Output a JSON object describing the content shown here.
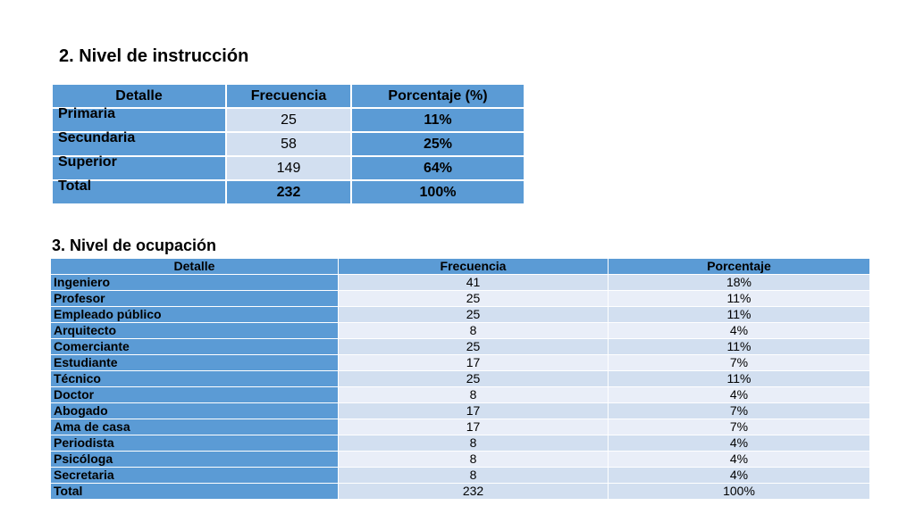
{
  "education": {
    "title": "2. Nivel de instrucción",
    "headers": [
      "Detalle",
      "Frecuencia",
      "Porcentaje (%)"
    ],
    "rows": [
      {
        "label": "Primaria",
        "freq": "25",
        "pct": "11%"
      },
      {
        "label": "Secundaria",
        "freq": "58",
        "pct": "25%"
      },
      {
        "label": "Superior",
        "freq": "149",
        "pct": "64%"
      },
      {
        "label": "Total",
        "freq": "232",
        "pct": "100%"
      }
    ]
  },
  "occupation": {
    "title": "3. Nivel de ocupación",
    "headers": [
      "Detalle",
      "Frecuencia",
      "Porcentaje"
    ],
    "rows": [
      {
        "label": "Ingeniero",
        "freq": "41",
        "pct": "18%"
      },
      {
        "label": "Profesor",
        "freq": "25",
        "pct": "11%"
      },
      {
        "label": "Empleado público",
        "freq": "25",
        "pct": "11%"
      },
      {
        "label": "Arquitecto",
        "freq": "8",
        "pct": "4%"
      },
      {
        "label": "Comerciante",
        "freq": "25",
        "pct": "11%"
      },
      {
        "label": "Estudiante",
        "freq": "17",
        "pct": "7%"
      },
      {
        "label": "Técnico",
        "freq": "25",
        "pct": "11%"
      },
      {
        "label": "Doctor",
        "freq": "8",
        "pct": "4%"
      },
      {
        "label": "Abogado",
        "freq": "17",
        "pct": "7%"
      },
      {
        "label": "Ama de casa",
        "freq": "17",
        "pct": "7%"
      },
      {
        "label": "Periodista",
        "freq": "8",
        "pct": "4%"
      },
      {
        "label": "Psicóloga",
        "freq": "8",
        "pct": "4%"
      },
      {
        "label": "Secretaria",
        "freq": "8",
        "pct": "4%"
      },
      {
        "label": "Total",
        "freq": "232",
        "pct": "100%"
      }
    ]
  }
}
